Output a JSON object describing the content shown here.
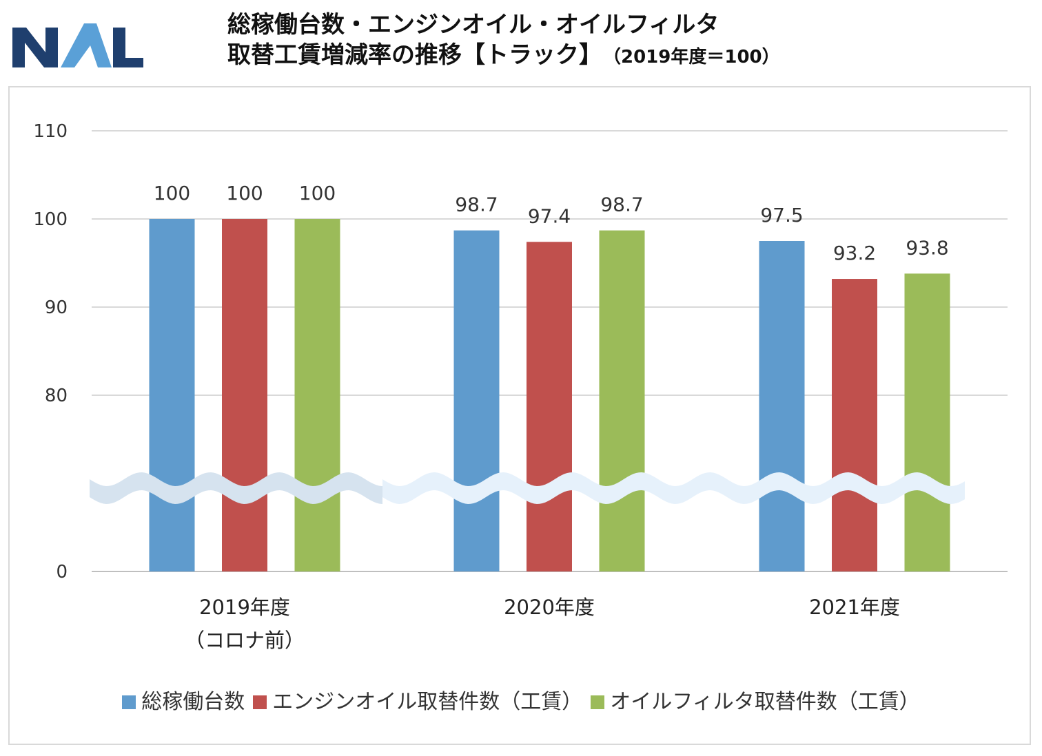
{
  "logo": {
    "text": "NAL",
    "colors": {
      "dark": "#1f3f6e",
      "light": "#5aa0d7"
    }
  },
  "title": {
    "line1": "総稼働台数・エンジンオイル・オイルフィルタ",
    "line2": "取替工賃増減率の推移【トラック】",
    "note": "（2019年度＝100）"
  },
  "chart_data": {
    "type": "bar",
    "title": "総稼働台数・エンジンオイル・オイルフィルタ 取替工賃増減率の推移【トラック】（2019年度＝100）",
    "categories": [
      {
        "line1": "2019年度",
        "line2": "（コロナ前）"
      },
      {
        "line1": "2020年度",
        "line2": ""
      },
      {
        "line1": "2021年度",
        "line2": ""
      }
    ],
    "series": [
      {
        "name": "総稼働台数",
        "color": "#5f9bcd",
        "values": [
          100,
          98.7,
          97.5
        ],
        "labels": [
          "100",
          "98.7",
          "97.5"
        ]
      },
      {
        "name": "エンジンオイル取替件数（工賃）",
        "color": "#c0504d",
        "values": [
          100,
          97.4,
          93.2
        ],
        "labels": [
          "100",
          "97.4",
          "93.2"
        ]
      },
      {
        "name": "オイルフィルタ取替件数（工賃）",
        "color": "#9bbb59",
        "values": [
          100,
          98.7,
          93.8
        ],
        "labels": [
          "100",
          "98.7",
          "93.8"
        ]
      }
    ],
    "y_axis": {
      "broken": true,
      "break_between": [
        0,
        80
      ],
      "ticks": [
        0,
        80,
        90,
        100,
        110
      ],
      "ylim": [
        0,
        110
      ]
    },
    "gridlines": true,
    "legend_position": "bottom"
  }
}
